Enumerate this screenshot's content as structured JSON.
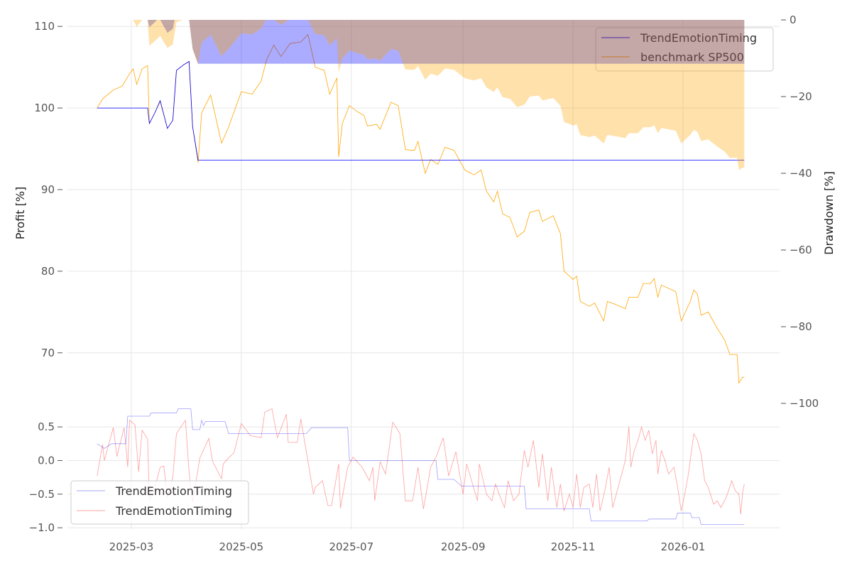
{
  "chart_data": [
    {
      "type": "line",
      "panel": "top",
      "ylabel": "Profit [%]",
      "ylabel_right": "Drawdown [%]",
      "ylim": [
        63.8,
        110.8
      ],
      "ylim_right": [
        -100,
        0
      ],
      "yticks": [
        70,
        80,
        90,
        100,
        110
      ],
      "yticks_right": [
        0,
        -20,
        -40,
        -60,
        -80,
        -100
      ],
      "ytick_labels_right": [
        "0",
        "−20",
        "−40",
        "−60",
        "−80",
        "−100"
      ],
      "grid": true,
      "legend": {
        "placement": "top-right",
        "entries": [
          "TrendEmotionTiming",
          "benchmark SP500"
        ]
      },
      "colors": {
        "strategy": "#0000ff",
        "benchmark": "#ffa500",
        "overlap": "#8a4f4f"
      },
      "series": [
        {
          "name": "TrendEmotionTiming",
          "color": "#0000ff",
          "x": [
            "2025-02-10",
            "2025-03-10",
            "2025-03-11",
            "2025-03-14",
            "2025-03-17",
            "2025-03-21",
            "2025-03-24",
            "2025-03-26",
            "2025-03-30",
            "2025-04-02",
            "2025-04-04",
            "2025-04-07",
            "2026-02-04"
          ],
          "y": [
            100,
            100,
            98.1,
            99.4,
            100.9,
            97.5,
            98.5,
            104.6,
            105.3,
            105.7,
            97.7,
            93.6,
            93.6
          ]
        },
        {
          "name": "benchmark SP500",
          "color": "#ffa500",
          "x": [
            "2025-02-10",
            "2025-02-13",
            "2025-02-19",
            "2025-02-24",
            "2025-02-28",
            "2025-03-02",
            "2025-03-04",
            "2025-03-07",
            "2025-03-10",
            "2025-03-11",
            "2025-03-14",
            "2025-03-17",
            "2025-03-21",
            "2025-03-24",
            "2025-03-26",
            "2025-03-30",
            "2025-04-02",
            "2025-04-04",
            "2025-04-07",
            "2025-04-09",
            "2025-04-14",
            "2025-04-20",
            "2025-04-24",
            "2025-05-01",
            "2025-05-07",
            "2025-05-12",
            "2025-05-15",
            "2025-05-19",
            "2025-05-23",
            "2025-05-28",
            "2025-06-03",
            "2025-06-07",
            "2025-06-11",
            "2025-06-16",
            "2025-06-19",
            "2025-06-23",
            "2025-06-24",
            "2025-06-26",
            "2025-06-30",
            "2025-07-04",
            "2025-07-08",
            "2025-07-10",
            "2025-07-15",
            "2025-07-17",
            "2025-07-23",
            "2025-07-27",
            "2025-07-31",
            "2025-08-05",
            "2025-08-07",
            "2025-08-11",
            "2025-08-14",
            "2025-08-18",
            "2025-08-22",
            "2025-08-27",
            "2025-09-02",
            "2025-09-07",
            "2025-09-11",
            "2025-09-14",
            "2025-09-18",
            "2025-09-20",
            "2025-09-23",
            "2025-09-27",
            "2025-10-01",
            "2025-10-05",
            "2025-10-08",
            "2025-10-13",
            "2025-10-15",
            "2025-10-21",
            "2025-10-25",
            "2025-10-27",
            "2025-11-01",
            "2025-11-03",
            "2025-11-05",
            "2025-11-10",
            "2025-11-13",
            "2025-11-18",
            "2025-11-20",
            "2025-11-25",
            "2025-11-30",
            "2025-12-02",
            "2025-12-07",
            "2025-12-10",
            "2025-12-14",
            "2025-12-16",
            "2025-12-18",
            "2025-12-20",
            "2025-12-28",
            "2025-12-31",
            "2026-01-05",
            "2026-01-07",
            "2026-01-09",
            "2026-01-11",
            "2026-01-15",
            "2026-01-20",
            "2026-01-24",
            "2026-01-27",
            "2026-01-31",
            "2026-02-01",
            "2026-02-03",
            "2026-02-04"
          ],
          "y": [
            100.0,
            101.1,
            102.2,
            102.7,
            104.2,
            104.8,
            102.9,
            104.8,
            105.2,
            98.1,
            99.4,
            100.8,
            97.5,
            98.5,
            104.6,
            105.3,
            105.7,
            97.7,
            93.3,
            99.4,
            101.6,
            95.7,
            97.7,
            102.0,
            101.7,
            103.3,
            105.9,
            107.7,
            106.3,
            107.9,
            108.1,
            109.0,
            105.0,
            104.6,
            101.7,
            103.7,
            94.0,
            98.1,
            100.3,
            99.6,
            99.1,
            97.8,
            98.0,
            97.4,
            100.7,
            100.3,
            94.9,
            94.8,
            95.9,
            92.0,
            93.7,
            93.1,
            95.2,
            94.8,
            92.4,
            91.8,
            92.4,
            89.8,
            88.5,
            89.8,
            87.0,
            86.6,
            84.2,
            84.9,
            87.2,
            87.5,
            86.1,
            86.8,
            84.6,
            80.0,
            79.0,
            79.4,
            76.3,
            75.7,
            76.1,
            73.9,
            76.3,
            75.9,
            75.4,
            76.8,
            76.8,
            78.5,
            78.5,
            79.1,
            76.8,
            78.3,
            77.5,
            73.9,
            76.3,
            77.7,
            77.2,
            74.6,
            75.0,
            73.0,
            71.6,
            69.8,
            69.8,
            66.3,
            67.0,
            67.0
          ]
        }
      ]
    },
    {
      "type": "line",
      "panel": "bottom",
      "ylim": [
        -1.02,
        0.85
      ],
      "yticks": [
        0.5,
        0.0,
        -0.5,
        -1.0
      ],
      "ytick_labels": [
        "0.5",
        "0.0",
        "−0.5",
        "−1.0"
      ],
      "xticks": [
        "2025-03-01",
        "2025-05-01",
        "2025-07-01",
        "2025-09-01",
        "2025-11-01",
        "2026-01-01"
      ],
      "xtick_labels": [
        "2025-03",
        "2025-05",
        "2025-07",
        "2025-09",
        "2025-11",
        "2026-01"
      ],
      "grid": true,
      "legend": {
        "placement": "bottom-left",
        "entries": [
          "TrendEmotionTiming",
          "TrendEmotionTiming"
        ]
      },
      "series": [
        {
          "name": "TrendEmotionTiming",
          "color": "#0000ff",
          "x": [
            "2025-02-10",
            "2025-02-14",
            "2025-02-18",
            "2025-02-26",
            "2025-02-27",
            "2025-03-11",
            "2025-03-12",
            "2025-03-26",
            "2025-03-27",
            "2025-04-03",
            "2025-04-04",
            "2025-04-08",
            "2025-04-09",
            "2025-04-10",
            "2025-04-11",
            "2025-04-22",
            "2025-04-24",
            "2025-06-06",
            "2025-06-09",
            "2025-06-29",
            "2025-06-30",
            "2025-08-17",
            "2025-08-18",
            "2025-08-27",
            "2025-08-31",
            "2025-10-05",
            "2025-10-06",
            "2025-11-10",
            "2025-11-11",
            "2025-12-12",
            "2025-12-13",
            "2025-12-28",
            "2025-12-29",
            "2026-01-05",
            "2026-01-06",
            "2026-01-10",
            "2026-01-11",
            "2026-02-04"
          ],
          "y": [
            0.25,
            0.18,
            0.25,
            0.25,
            0.66,
            0.66,
            0.71,
            0.71,
            0.77,
            0.77,
            0.46,
            0.46,
            0.6,
            0.52,
            0.58,
            0.58,
            0.4,
            0.4,
            0.49,
            0.49,
            0.0,
            0.0,
            -0.28,
            -0.28,
            -0.38,
            -0.38,
            -0.72,
            -0.72,
            -0.9,
            -0.9,
            -0.87,
            -0.87,
            -0.78,
            -0.78,
            -0.85,
            -0.85,
            -0.95,
            -0.95
          ]
        },
        {
          "name": "TrendEmotionTiming",
          "color": "#ff0000",
          "x": [
            "2025-02-10",
            "2025-02-13",
            "2025-02-14",
            "2025-02-19",
            "2025-02-21",
            "2025-02-25",
            "2025-02-27",
            "2025-02-28",
            "2025-03-03",
            "2025-03-05",
            "2025-03-07",
            "2025-03-10",
            "2025-03-11",
            "2025-03-13",
            "2025-03-17",
            "2025-03-19",
            "2025-03-21",
            "2025-03-24",
            "2025-03-26",
            "2025-03-31",
            "2025-04-02",
            "2025-04-04",
            "2025-04-08",
            "2025-04-13",
            "2025-04-15",
            "2025-04-20",
            "2025-04-21",
            "2025-04-24",
            "2025-04-27",
            "2025-05-01",
            "2025-05-06",
            "2025-05-12",
            "2025-05-14",
            "2025-05-18",
            "2025-05-21",
            "2025-05-26",
            "2025-05-27",
            "2025-06-01",
            "2025-06-03",
            "2025-06-10",
            "2025-06-11",
            "2025-06-15",
            "2025-06-18",
            "2025-06-20",
            "2025-06-24",
            "2025-06-25",
            "2025-06-29",
            "2025-07-02",
            "2025-07-07",
            "2025-07-11",
            "2025-07-13",
            "2025-07-14",
            "2025-07-17",
            "2025-07-20",
            "2025-07-24",
            "2025-07-28",
            "2025-07-31",
            "2025-08-04",
            "2025-08-07",
            "2025-08-10",
            "2025-08-14",
            "2025-08-17",
            "2025-08-21",
            "2025-08-24",
            "2025-08-28",
            "2025-09-01",
            "2025-09-03",
            "2025-09-09",
            "2025-09-10",
            "2025-09-14",
            "2025-09-17",
            "2025-09-19",
            "2025-09-21",
            "2025-09-24",
            "2025-09-26",
            "2025-09-29",
            "2025-10-02",
            "2025-10-05",
            "2025-10-07",
            "2025-10-10",
            "2025-10-13",
            "2025-10-15",
            "2025-10-18",
            "2025-10-20",
            "2025-10-23",
            "2025-10-25",
            "2025-10-27",
            "2025-10-30",
            "2025-11-01",
            "2025-11-03",
            "2025-11-05",
            "2025-11-07",
            "2025-11-10",
            "2025-11-12",
            "2025-11-14",
            "2025-11-16",
            "2025-11-19",
            "2025-11-21",
            "2025-11-23",
            "2025-11-26",
            "2025-11-28",
            "2025-11-30",
            "2025-12-02",
            "2025-12-03",
            "2025-12-05",
            "2025-12-07",
            "2025-12-09",
            "2025-12-11",
            "2025-12-13",
            "2025-12-15",
            "2025-12-17",
            "2025-12-18",
            "2025-12-20",
            "2025-12-22",
            "2025-12-24",
            "2025-12-27",
            "2025-12-29",
            "2025-12-31",
            "2026-01-02",
            "2026-01-04",
            "2026-01-07",
            "2026-01-09",
            "2026-01-11",
            "2026-01-13",
            "2026-01-15",
            "2026-01-18",
            "2026-01-20",
            "2026-01-22",
            "2026-01-25",
            "2026-01-28",
            "2026-01-30",
            "2026-02-01",
            "2026-02-02",
            "2026-02-03",
            "2026-02-04"
          ],
          "y": [
            -0.23,
            0.24,
            0.0,
            0.49,
            0.06,
            0.49,
            -0.1,
            0.6,
            0.53,
            -0.17,
            0.45,
            0.32,
            -0.59,
            -0.5,
            -0.1,
            -0.08,
            -0.55,
            -0.25,
            0.4,
            0.6,
            -0.18,
            -0.62,
            0.04,
            0.33,
            -0.01,
            -0.27,
            -0.05,
            0.04,
            0.12,
            0.55,
            0.37,
            0.34,
            0.72,
            0.77,
            0.34,
            0.69,
            0.27,
            0.27,
            0.62,
            -0.5,
            -0.4,
            -0.3,
            -0.67,
            -0.67,
            -0.05,
            -0.71,
            -0.1,
            0.05,
            -0.1,
            -0.3,
            -0.1,
            -0.6,
            -0.02,
            -0.2,
            0.57,
            0.4,
            -0.6,
            -0.6,
            -0.1,
            -0.72,
            -0.1,
            0.05,
            0.34,
            -0.23,
            0.13,
            -0.5,
            -0.05,
            -0.6,
            -0.05,
            -0.5,
            -0.6,
            -0.35,
            -0.5,
            -0.7,
            -0.3,
            -0.6,
            -0.5,
            0.15,
            -0.1,
            0.3,
            -0.4,
            0.1,
            -0.6,
            -0.1,
            -0.7,
            -0.35,
            -0.75,
            -0.5,
            -0.7,
            -0.2,
            -0.7,
            -0.4,
            -0.35,
            -0.7,
            -0.2,
            -0.75,
            -0.4,
            -0.1,
            -0.7,
            -0.4,
            -0.2,
            0.0,
            0.5,
            -0.1,
            0.15,
            0.3,
            0.5,
            0.3,
            0.45,
            0.1,
            0.3,
            -0.2,
            0.15,
            0.0,
            -0.2,
            -0.1,
            -0.4,
            -0.75,
            -0.5,
            -0.2,
            0.4,
            0.3,
            0.1,
            -0.3,
            -0.4,
            -0.65,
            -0.6,
            -0.7,
            -0.55,
            -0.3,
            -0.45,
            -0.5,
            -0.8,
            -0.5,
            -0.35
          ]
        }
      ]
    }
  ]
}
